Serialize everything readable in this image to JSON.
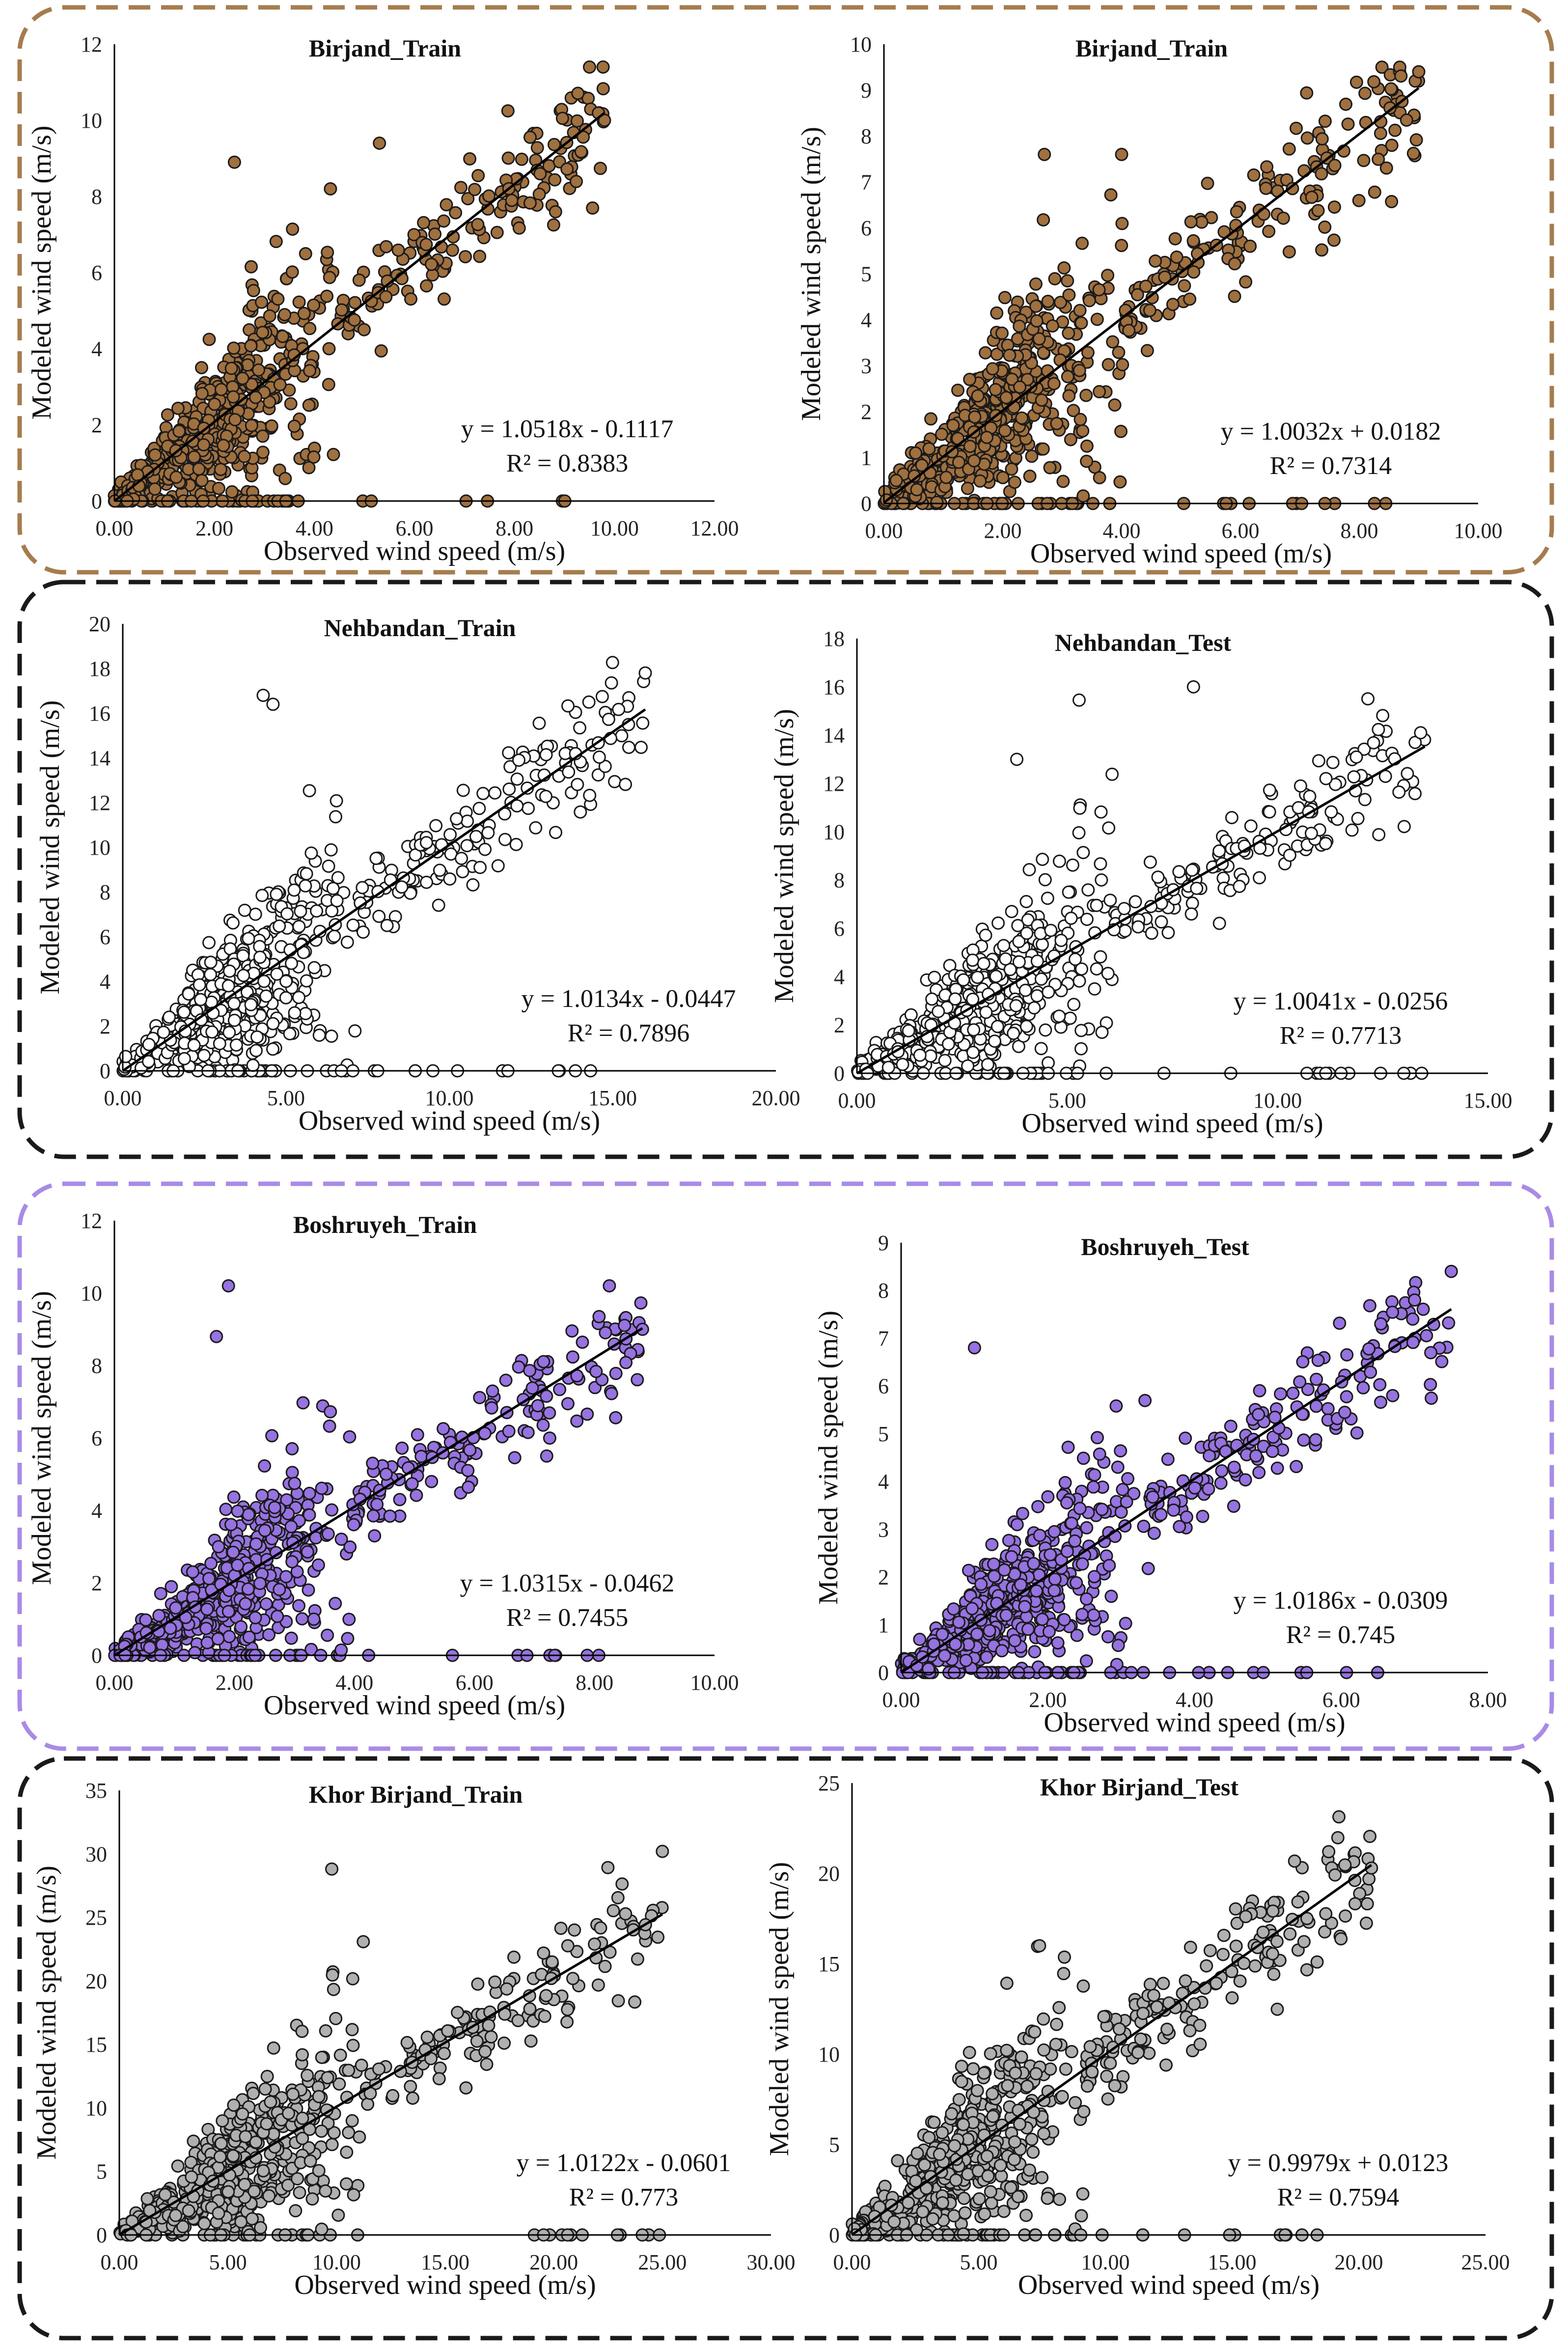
{
  "figure": {
    "description_axis_x": "Observed wind speed (m/s)",
    "description_axis_y": "Modeled wind speed (m/s)"
  },
  "colors": {
    "birjand": "#a0703f",
    "nehbandan": "#ffffff",
    "boshruyeh": "#9673e0",
    "khor": "#b0b0b0",
    "frame_birjand": "#a67c4e",
    "frame_black": "#1a1a1a",
    "frame_boshruyeh": "#a98be6"
  },
  "chart_data": [
    {
      "type": "scatter",
      "station": "Birjand",
      "title": "Birjand_Train",
      "xlabel": "Observed wind speed (m/s)",
      "ylabel": "Modeled wind speed (m/s)",
      "xlim": [
        0,
        12
      ],
      "ylim": [
        0,
        12
      ],
      "xticks": [
        "0.00",
        "2.00",
        "4.00",
        "6.00",
        "8.00",
        "10.00",
        "12.00"
      ],
      "yticks": [
        "0",
        "2",
        "4",
        "6",
        "8",
        "10",
        "12"
      ],
      "regression": {
        "slope": 1.0518,
        "intercept": -0.1117,
        "x_range": [
          0,
          9.8
        ]
      },
      "equation": "y = 1.0518x - 0.1117",
      "r2": "R² = 0.8383",
      "marker_color": "birjand",
      "highlight_points": [
        {
          "x": 9.8,
          "y": 10.0
        },
        {
          "x": 2.4,
          "y": 8.9
        },
        {
          "x": 5.3,
          "y": 9.4
        }
      ]
    },
    {
      "type": "scatter",
      "station": "Birjand",
      "title": "Birjand_Train",
      "xlabel": "Observed wind speed (m/s)",
      "ylabel": "Modeled wind speed (m/s)",
      "xlim": [
        0,
        10
      ],
      "ylim": [
        0,
        10
      ],
      "xticks": [
        "0.00",
        "2.00",
        "4.00",
        "6.00",
        "8.00",
        "10.00"
      ],
      "yticks": [
        "0",
        "1",
        "2",
        "3",
        "4",
        "5",
        "6",
        "7",
        "8",
        "9",
        "10"
      ],
      "regression": {
        "slope": 1.0032,
        "intercept": 0.0182,
        "x_range": [
          0,
          9.0
        ]
      },
      "equation": "y = 1.0032x + 0.0182",
      "r2": "R² = 0.7314",
      "marker_color": "birjand",
      "highlight_points": [
        {
          "x": 9.0,
          "y": 9.4
        },
        {
          "x": 2.7,
          "y": 7.6
        },
        {
          "x": 4.0,
          "y": 7.6
        }
      ]
    },
    {
      "type": "scatter",
      "station": "Nehbandan",
      "title": "Nehbandan_Train",
      "xlabel": "Observed wind speed (m/s)",
      "ylabel": "Modeled wind speed (m/s)",
      "xlim": [
        0,
        20
      ],
      "ylim": [
        0,
        20
      ],
      "xticks": [
        "0.00",
        "5.00",
        "10.00",
        "15.00",
        "20.00"
      ],
      "yticks": [
        "0",
        "2",
        "4",
        "6",
        "8",
        "10",
        "12",
        "14",
        "16",
        "18",
        "20"
      ],
      "regression": {
        "slope": 1.0134,
        "intercept": -0.0447,
        "x_range": [
          0,
          16.0
        ]
      },
      "equation": "y = 1.0134x - 0.0447",
      "r2": "R² = 0.7896",
      "marker_color": "nehbandan",
      "highlight_points": [
        {
          "x": 16.0,
          "y": 17.8
        },
        {
          "x": 4.3,
          "y": 16.8
        },
        {
          "x": 4.6,
          "y": 16.4
        }
      ]
    },
    {
      "type": "scatter",
      "station": "Nehbandan",
      "title": "Nehbandan_Test",
      "xlabel": "Observed wind speed (m/s)",
      "ylabel": "Modeled wind speed (m/s)",
      "xlim": [
        0,
        15
      ],
      "ylim": [
        0,
        18
      ],
      "xticks": [
        "0.00",
        "5.00",
        "10.00",
        "15.00"
      ],
      "yticks": [
        "0",
        "2",
        "4",
        "6",
        "8",
        "10",
        "12",
        "14",
        "16",
        "18"
      ],
      "regression": {
        "slope": 1.0041,
        "intercept": -0.0256,
        "x_range": [
          0,
          13.5
        ]
      },
      "equation": "y = 1.0041x - 0.0256",
      "r2": "R² = 0.7713",
      "marker_color": "nehbandan",
      "highlight_points": [
        {
          "x": 8.0,
          "y": 16.0
        },
        {
          "x": 13.4,
          "y": 14.1
        },
        {
          "x": 3.8,
          "y": 13.0
        }
      ]
    },
    {
      "type": "scatter",
      "station": "Boshruyeh",
      "title": "Boshruyeh_Train",
      "xlabel": "Observed wind speed (m/s)",
      "ylabel": "Modeled wind speed (m/s)",
      "xlim": [
        0,
        10
      ],
      "ylim": [
        0,
        12
      ],
      "xticks": [
        "0.00",
        "2.00",
        "4.00",
        "6.00",
        "8.00",
        "10.00"
      ],
      "yticks": [
        "0",
        "2",
        "4",
        "6",
        "8",
        "10",
        "12"
      ],
      "regression": {
        "slope": 1.0315,
        "intercept": -0.0462,
        "x_range": [
          0,
          8.8
        ]
      },
      "equation": "y = 1.0315x - 0.0462",
      "r2": "R² = 0.7455",
      "marker_color": "boshruyeh",
      "highlight_points": [
        {
          "x": 8.8,
          "y": 9.0
        },
        {
          "x": 1.9,
          "y": 10.2
        },
        {
          "x": 1.7,
          "y": 8.8
        }
      ]
    },
    {
      "type": "scatter",
      "station": "Boshruyeh",
      "title": "Boshruyeh_Test",
      "xlabel": "Observed wind speed (m/s)",
      "ylabel": "Modeled wind speed (m/s)",
      "xlim": [
        0,
        8
      ],
      "ylim": [
        0,
        9
      ],
      "xticks": [
        "0.00",
        "2.00",
        "4.00",
        "6.00",
        "8.00"
      ],
      "yticks": [
        "0",
        "1",
        "2",
        "3",
        "4",
        "5",
        "6",
        "7",
        "8",
        "9"
      ],
      "regression": {
        "slope": 1.0186,
        "intercept": -0.0309,
        "x_range": [
          0,
          7.5
        ]
      },
      "equation": "y = 1.0186x - 0.0309",
      "r2": "R² = 0.745",
      "marker_color": "boshruyeh",
      "highlight_points": [
        {
          "x": 7.5,
          "y": 8.4
        },
        {
          "x": 1.0,
          "y": 6.8
        },
        {
          "x": 7.0,
          "y": 7.8
        }
      ]
    },
    {
      "type": "scatter",
      "station": "Khor Birjand",
      "title": "Khor Birjand_Train",
      "xlabel": "Observed wind speed (m/s)",
      "ylabel": "Modeled wind speed (m/s)",
      "xlim": [
        0,
        30
      ],
      "ylim": [
        0,
        35
      ],
      "xticks": [
        "0.00",
        "5.00",
        "10.00",
        "15.00",
        "20.00",
        "25.00",
        "30.00"
      ],
      "yticks": [
        "0",
        "5",
        "10",
        "15",
        "20",
        "25",
        "30",
        "35"
      ],
      "regression": {
        "slope": 1.0122,
        "intercept": -0.0601,
        "x_range": [
          0,
          25.0
        ]
      },
      "equation": "y = 1.0122x - 0.0601",
      "r2": "R² = 0.773",
      "marker_color": "khor",
      "highlight_points": [
        {
          "x": 25.0,
          "y": 30.2
        },
        {
          "x": 18.9,
          "y": 17.8
        },
        {
          "x": 17.0,
          "y": 16.5
        }
      ]
    },
    {
      "type": "scatter",
      "station": "Khor Birjand",
      "title": "Khor Birjand_Test",
      "xlabel": "Observed wind speed (m/s)",
      "ylabel": "Modeled wind speed (m/s)",
      "xlim": [
        0,
        25
      ],
      "ylim": [
        0,
        25
      ],
      "xticks": [
        "0.00",
        "5.00",
        "10.00",
        "15.00",
        "20.00",
        "25.00"
      ],
      "yticks": [
        "0",
        "5",
        "10",
        "15",
        "20",
        "25"
      ],
      "regression": {
        "slope": 0.9979,
        "intercept": 0.0123,
        "x_range": [
          0,
          20.5
        ]
      },
      "equation": "y = 0.9979x + 0.0123",
      "r2": "R² = 0.7594",
      "marker_color": "khor",
      "highlight_points": [
        {
          "x": 20.5,
          "y": 20.3
        },
        {
          "x": 7.4,
          "y": 16.0
        },
        {
          "x": 16.0,
          "y": 15.9
        }
      ]
    }
  ]
}
